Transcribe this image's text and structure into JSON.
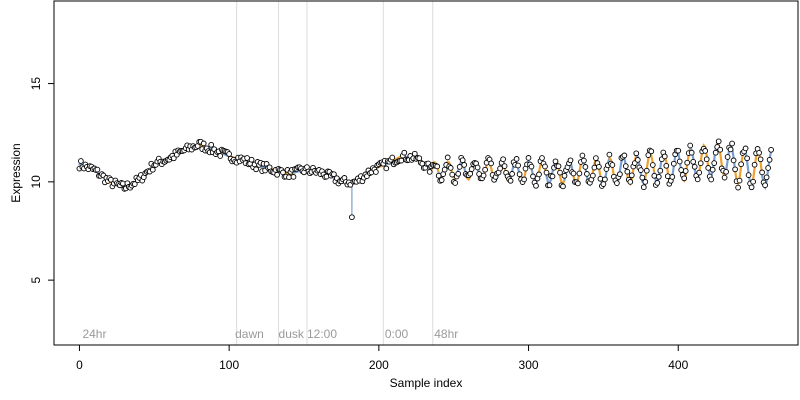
{
  "chart_data": {
    "type": "scatter",
    "title": "",
    "xlabel": "Sample index",
    "ylabel": "Expression",
    "xlim": [
      -17,
      480
    ],
    "ylim": [
      1.7,
      19.2
    ],
    "x_ticks": [
      0,
      100,
      200,
      300,
      400
    ],
    "y_ticks": [
      5,
      10,
      15
    ],
    "grid": false,
    "colors": {
      "points_fill": "#ffffff",
      "points_stroke": "#000000",
      "fit_blue": "#7a9fcf",
      "fit_orange": "#f0a030",
      "event_lines": "#dcdcdc",
      "annotation_text": "#9a9a9a"
    },
    "annotations": [
      {
        "label": "24hr",
        "x": 2,
        "line": false
      },
      {
        "label": "dawn",
        "x": 104,
        "line": true,
        "line_x": 105
      },
      {
        "label": "dusk",
        "x": 133,
        "line": true,
        "line_x": 133
      },
      {
        "label": "12:00",
        "x": 152,
        "line": true,
        "line_x": 152
      },
      {
        "label": "0:00",
        "x": 204,
        "line": true,
        "line_x": 203
      },
      {
        "label": "48hr",
        "x": 237,
        "line": true,
        "line_x": 236
      }
    ],
    "series_generator": {
      "n_points": 463,
      "segments": [
        [
          0,
          10.9
        ],
        [
          10,
          10.6
        ],
        [
          20,
          10.0
        ],
        [
          30,
          9.7
        ],
        [
          40,
          10.1
        ],
        [
          50,
          10.9
        ],
        [
          60,
          11.2
        ],
        [
          70,
          11.6
        ],
        [
          80,
          11.9
        ],
        [
          90,
          11.6
        ],
        [
          100,
          11.3
        ],
        [
          110,
          11.1
        ],
        [
          120,
          10.8
        ],
        [
          130,
          10.6
        ],
        [
          140,
          10.4
        ],
        [
          150,
          10.6
        ],
        [
          160,
          10.5
        ],
        [
          170,
          10.2
        ],
        [
          175,
          10.0
        ],
        [
          185,
          10.0
        ],
        [
          195,
          10.6
        ],
        [
          205,
          10.9
        ],
        [
          215,
          11.3
        ],
        [
          225,
          11.2
        ],
        [
          235,
          10.6
        ],
        [
          250,
          10.6
        ],
        [
          300,
          10.5
        ],
        [
          350,
          10.5
        ],
        [
          400,
          10.8
        ],
        [
          430,
          11.2
        ],
        [
          440,
          10.8
        ],
        [
          462,
          10.6
        ]
      ],
      "wave": [
        {
          "from": 235,
          "to": 462,
          "period": 9,
          "amp_start": 0.4,
          "amp_end": 0.95
        }
      ],
      "outliers": [
        {
          "x": 182,
          "y": 8.2
        }
      ]
    }
  }
}
